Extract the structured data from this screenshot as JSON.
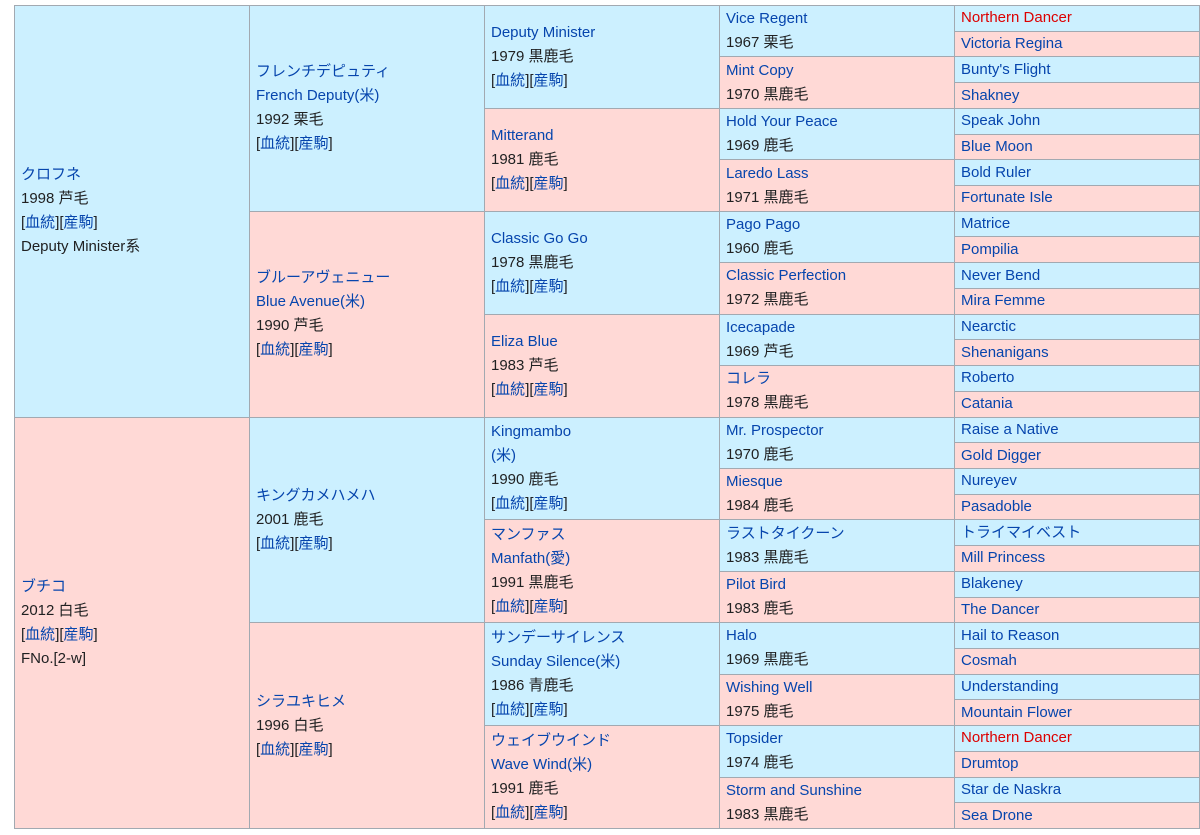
{
  "theme": {
    "male_bg": "#ccf0ff",
    "female_bg": "#ffd9d6",
    "link_color": "#0645ad",
    "highlight_color": "#dd0000",
    "border_color": "#a2a9b1"
  },
  "links": {
    "pedigree": "血統",
    "progeny": "産駒"
  },
  "g1": [
    {
      "name": "クロフネ",
      "year": "1998",
      "color": "芦毛",
      "extra": "Deputy Minister系",
      "sex": "m"
    },
    {
      "name": "ブチコ",
      "year": "2012",
      "color": "白毛",
      "extra": "FNo.[2-w]",
      "sex": "f"
    }
  ],
  "g2": [
    {
      "name": "フレンチデピュティ",
      "name2": "French Deputy(米)",
      "year": "1992",
      "color": "栗毛",
      "sex": "m"
    },
    {
      "name": "ブルーアヴェニュー",
      "name2": "Blue Avenue(米)",
      "year": "1990",
      "color": "芦毛",
      "sex": "f"
    },
    {
      "name": "キングカメハメハ",
      "year": "2001",
      "color": "鹿毛",
      "sex": "m"
    },
    {
      "name": "シラユキヒメ",
      "year": "1996",
      "color": "白毛",
      "sex": "f"
    }
  ],
  "g3": [
    {
      "name": "Deputy Minister",
      "year": "1979",
      "color": "黒鹿毛",
      "sex": "m"
    },
    {
      "name": "Mitterand",
      "year": "1981",
      "color": "鹿毛",
      "sex": "f"
    },
    {
      "name": "Classic Go Go",
      "year": "1978",
      "color": "黒鹿毛",
      "sex": "m"
    },
    {
      "name": "Eliza Blue",
      "year": "1983",
      "color": "芦毛",
      "sex": "f"
    },
    {
      "name": "Kingmambo",
      "name2": "(米)",
      "year": "1990",
      "color": "鹿毛",
      "sex": "m"
    },
    {
      "name": "マンファス",
      "name2": "Manfath(愛)",
      "year": "1991",
      "color": "黒鹿毛",
      "sex": "f"
    },
    {
      "name": "サンデーサイレンス",
      "name2": "Sunday Silence(米)",
      "year": "1986",
      "color": "青鹿毛",
      "sex": "m"
    },
    {
      "name": "ウェイブウインド",
      "name2": "Wave Wind(米)",
      "year": "1991",
      "color": "鹿毛",
      "sex": "f"
    }
  ],
  "g4": [
    {
      "name": "Vice Regent",
      "year": "1967",
      "color": "栗毛",
      "sex": "m"
    },
    {
      "name": "Mint Copy",
      "year": "1970",
      "color": "黒鹿毛",
      "sex": "f"
    },
    {
      "name": "Hold Your Peace",
      "year": "1969",
      "color": "鹿毛",
      "sex": "m"
    },
    {
      "name": "Laredo Lass",
      "year": "1971",
      "color": "黒鹿毛",
      "sex": "f"
    },
    {
      "name": "Pago Pago",
      "year": "1960",
      "color": "鹿毛",
      "sex": "m"
    },
    {
      "name": "Classic Perfection",
      "year": "1972",
      "color": "黒鹿毛",
      "sex": "f"
    },
    {
      "name": "Icecapade",
      "year": "1969",
      "color": "芦毛",
      "sex": "m"
    },
    {
      "name": "コレラ",
      "year": "1978",
      "color": "黒鹿毛",
      "sex": "f"
    },
    {
      "name": "Mr. Prospector",
      "year": "1970",
      "color": "鹿毛",
      "sex": "m"
    },
    {
      "name": "Miesque",
      "year": "1984",
      "color": "鹿毛",
      "sex": "f"
    },
    {
      "name": "ラストタイクーン",
      "year": "1983",
      "color": "黒鹿毛",
      "sex": "m"
    },
    {
      "name": "Pilot Bird",
      "year": "1983",
      "color": "鹿毛",
      "sex": "f"
    },
    {
      "name": "Halo",
      "year": "1969",
      "color": "黒鹿毛",
      "sex": "m"
    },
    {
      "name": "Wishing Well",
      "year": "1975",
      "color": "鹿毛",
      "sex": "f"
    },
    {
      "name": "Topsider",
      "year": "1974",
      "color": "鹿毛",
      "sex": "m"
    },
    {
      "name": "Storm and Sunshine",
      "year": "1983",
      "color": "黒鹿毛",
      "sex": "f"
    }
  ],
  "g5": [
    {
      "name": "Northern Dancer",
      "sex": "m",
      "red": true
    },
    {
      "name": "Victoria Regina",
      "sex": "f"
    },
    {
      "name": "Bunty's Flight",
      "sex": "m"
    },
    {
      "name": "Shakney",
      "sex": "f"
    },
    {
      "name": "Speak John",
      "sex": "m"
    },
    {
      "name": "Blue Moon",
      "sex": "f"
    },
    {
      "name": "Bold Ruler",
      "sex": "m"
    },
    {
      "name": "Fortunate Isle",
      "sex": "f"
    },
    {
      "name": "Matrice",
      "sex": "m"
    },
    {
      "name": "Pompilia",
      "sex": "f"
    },
    {
      "name": "Never Bend",
      "sex": "m"
    },
    {
      "name": "Mira Femme",
      "sex": "f"
    },
    {
      "name": "Nearctic",
      "sex": "m"
    },
    {
      "name": "Shenanigans",
      "sex": "f"
    },
    {
      "name": "Roberto",
      "sex": "m"
    },
    {
      "name": "Catania",
      "sex": "f"
    },
    {
      "name": "Raise a Native",
      "sex": "m"
    },
    {
      "name": "Gold Digger",
      "sex": "f"
    },
    {
      "name": "Nureyev",
      "sex": "m"
    },
    {
      "name": "Pasadoble",
      "sex": "f"
    },
    {
      "name": "トライマイベスト",
      "sex": "m"
    },
    {
      "name": "Mill Princess",
      "sex": "f"
    },
    {
      "name": "Blakeney",
      "sex": "m"
    },
    {
      "name": "The Dancer",
      "sex": "f"
    },
    {
      "name": "Hail to Reason",
      "sex": "m"
    },
    {
      "name": "Cosmah",
      "sex": "f"
    },
    {
      "name": "Understanding",
      "sex": "m"
    },
    {
      "name": "Mountain Flower",
      "sex": "f"
    },
    {
      "name": "Northern Dancer",
      "sex": "m",
      "red": true
    },
    {
      "name": "Drumtop",
      "sex": "f"
    },
    {
      "name": "Star de Naskra",
      "sex": "m"
    },
    {
      "name": "Sea Drone",
      "sex": "f"
    }
  ]
}
